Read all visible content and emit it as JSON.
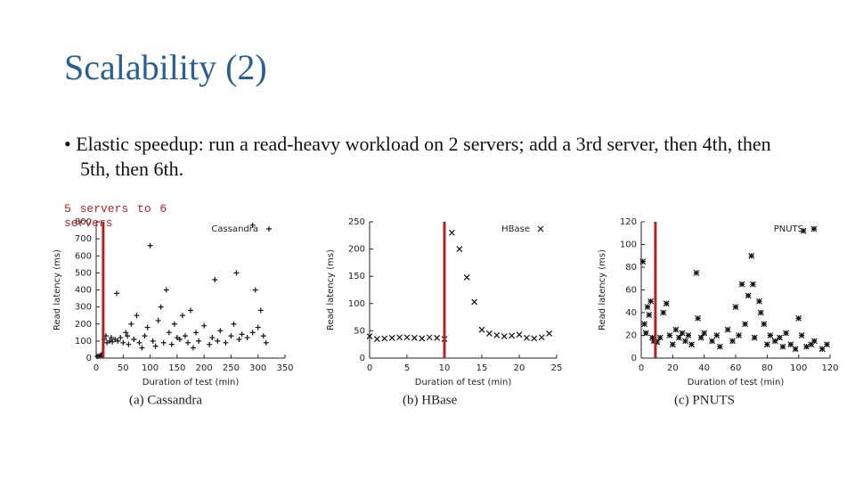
{
  "title": "Scalability (2)",
  "bullet": "Elastic speedup: run a read-heavy workload on 2 servers; add a 3rd server, then 4th, then 5th, then 6th.",
  "annotation": "5 servers to 6 servers",
  "chart_data": [
    {
      "type": "scatter",
      "caption": "(a) Cassandra",
      "x_label": "Duration of test (min)",
      "y_label": "Read latency (ms)",
      "marker": "plus",
      "legend": "top-right",
      "vline": {
        "x": 13,
        "color": "#b22222"
      },
      "xlim": [
        0,
        350
      ],
      "xticks": [
        0,
        50,
        100,
        150,
        200,
        250,
        300,
        350
      ],
      "ylim": [
        0,
        800
      ],
      "yticks": [
        0,
        100,
        200,
        300,
        400,
        500,
        600,
        700,
        800
      ],
      "series": [
        {
          "name": "Cassandra",
          "color": "#111111",
          "x": [
            2,
            5,
            8,
            10,
            15,
            18,
            20,
            25,
            28,
            30,
            35,
            38,
            40,
            45,
            50,
            55,
            58,
            60,
            65,
            70,
            75,
            80,
            85,
            90,
            95,
            100,
            105,
            110,
            115,
            120,
            125,
            130,
            135,
            140,
            145,
            150,
            155,
            160,
            165,
            170,
            175,
            180,
            185,
            190,
            200,
            210,
            215,
            220,
            225,
            230,
            240,
            250,
            255,
            260,
            265,
            270,
            280,
            290,
            300,
            305,
            310,
            315,
            290,
            295
          ],
          "values": [
            10,
            12,
            15,
            20,
            110,
            130,
            90,
            100,
            120,
            95,
            110,
            380,
            100,
            120,
            90,
            150,
            130,
            80,
            200,
            110,
            250,
            90,
            60,
            130,
            180,
            660,
            100,
            70,
            220,
            300,
            90,
            400,
            150,
            80,
            200,
            120,
            110,
            250,
            130,
            90,
            280,
            60,
            150,
            100,
            190,
            80,
            120,
            460,
            100,
            160,
            90,
            130,
            200,
            500,
            110,
            140,
            120,
            150,
            180,
            280,
            130,
            90,
            780,
            400
          ]
        }
      ]
    },
    {
      "type": "scatter",
      "caption": "(b) HBase",
      "x_label": "Duration of test (min)",
      "y_label": "Read latency (ms)",
      "marker": "cross",
      "legend": "top-right",
      "vline": {
        "x": 10,
        "color": "#b22222"
      },
      "xlim": [
        0,
        25
      ],
      "xticks": [
        0,
        5,
        10,
        15,
        20,
        25
      ],
      "ylim": [
        0,
        250
      ],
      "yticks": [
        0,
        50,
        100,
        150,
        200,
        250
      ],
      "series": [
        {
          "name": "HBase",
          "color": "#111111",
          "x": [
            0,
            1,
            2,
            3,
            4,
            5,
            6,
            7,
            8,
            9,
            10,
            11,
            12,
            13,
            14,
            15,
            16,
            17,
            18,
            19,
            20,
            21,
            22,
            23,
            24
          ],
          "values": [
            40,
            35,
            36,
            37,
            38,
            38,
            37,
            36,
            38,
            37,
            35,
            230,
            200,
            148,
            103,
            52,
            45,
            42,
            40,
            41,
            43,
            37,
            36,
            38,
            45
          ]
        }
      ]
    },
    {
      "type": "scatter",
      "caption": "(c) PNUTS",
      "x_label": "Duration of test (min)",
      "y_label": "Read latency (ms)",
      "marker": "star",
      "legend": "top-right",
      "vline": {
        "x": 9,
        "color": "#b22222"
      },
      "xlim": [
        0,
        120
      ],
      "xticks": [
        0,
        20,
        40,
        60,
        80,
        100,
        120
      ],
      "ylim": [
        0,
        120
      ],
      "yticks": [
        0,
        20,
        40,
        60,
        80,
        100,
        120
      ],
      "series": [
        {
          "name": "PNUTS",
          "color": "#111111",
          "x": [
            1,
            2,
            3,
            4,
            5,
            6,
            7,
            8,
            10,
            12,
            14,
            16,
            18,
            20,
            22,
            24,
            26,
            28,
            30,
            32,
            35,
            36,
            38,
            40,
            45,
            48,
            50,
            55,
            58,
            60,
            62,
            64,
            66,
            68,
            70,
            71,
            72,
            75,
            76,
            78,
            80,
            82,
            85,
            88,
            90,
            92,
            95,
            98,
            100,
            102,
            105,
            108,
            110,
            115,
            118,
            103
          ],
          "values": [
            85,
            30,
            22,
            45,
            38,
            50,
            18,
            15,
            14,
            18,
            40,
            48,
            20,
            12,
            25,
            18,
            22,
            15,
            20,
            12,
            75,
            35,
            18,
            22,
            15,
            20,
            10,
            25,
            15,
            45,
            20,
            65,
            30,
            55,
            90,
            65,
            18,
            50,
            40,
            30,
            12,
            20,
            15,
            18,
            10,
            22,
            12,
            8,
            35,
            20,
            10,
            12,
            15,
            8,
            12,
            112
          ]
        }
      ]
    }
  ]
}
